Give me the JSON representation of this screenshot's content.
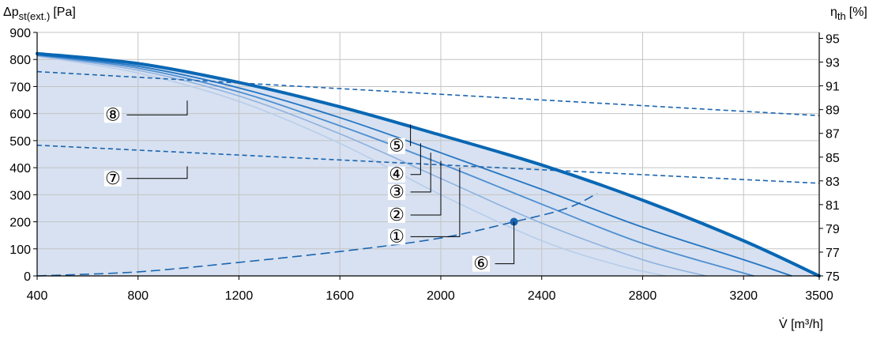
{
  "chart_data": {
    "type": "line",
    "x": {
      "label": "V̇ [m³/h]",
      "ticks": [
        400,
        800,
        1200,
        1600,
        2000,
        2400,
        2800,
        3200,
        3500
      ],
      "range": [
        400,
        3500
      ]
    },
    "y_left": {
      "label_main": "Δp",
      "label_sub": "st(ext.)",
      "label_unit": "[Pa]",
      "ticks": [
        0,
        100,
        200,
        300,
        400,
        500,
        600,
        700,
        800,
        900
      ],
      "range": [
        0,
        900
      ]
    },
    "y_right": {
      "label_main": "η",
      "label_sub": "th",
      "label_unit": "[%]",
      "ticks": [
        75,
        77,
        79,
        81,
        83,
        85,
        87,
        89,
        91,
        93,
        95
      ],
      "range": [
        75,
        95.5
      ]
    },
    "grid": true,
    "fan_curves": [
      {
        "name": "1",
        "color": "#b9cdea",
        "width": 1.6,
        "points": [
          [
            400,
            812
          ],
          [
            800,
            750
          ],
          [
            1200,
            645
          ],
          [
            1600,
            490
          ],
          [
            2000,
            300
          ],
          [
            2400,
            130
          ],
          [
            2700,
            40
          ],
          [
            2890,
            0
          ]
        ]
      },
      {
        "name": "2",
        "color": "#8fb2df",
        "width": 1.6,
        "points": [
          [
            400,
            814
          ],
          [
            800,
            760
          ],
          [
            1200,
            665
          ],
          [
            1600,
            525
          ],
          [
            2000,
            360
          ],
          [
            2400,
            195
          ],
          [
            2800,
            60
          ],
          [
            3050,
            0
          ]
        ]
      },
      {
        "name": "3",
        "color": "#4f8fd1",
        "width": 1.8,
        "points": [
          [
            400,
            816
          ],
          [
            800,
            768
          ],
          [
            1200,
            680
          ],
          [
            1600,
            555
          ],
          [
            2000,
            415
          ],
          [
            2400,
            265
          ],
          [
            2800,
            120
          ],
          [
            3240,
            0
          ]
        ]
      },
      {
        "name": "4",
        "color": "#2476c3",
        "width": 1.8,
        "points": [
          [
            400,
            818
          ],
          [
            800,
            775
          ],
          [
            1200,
            695
          ],
          [
            1600,
            585
          ],
          [
            2000,
            455
          ],
          [
            2400,
            320
          ],
          [
            2800,
            180
          ],
          [
            3200,
            60
          ],
          [
            3390,
            0
          ]
        ]
      },
      {
        "name": "5",
        "color": "#0867b4",
        "width": 4,
        "points": [
          [
            400,
            822
          ],
          [
            800,
            785
          ],
          [
            1200,
            715
          ],
          [
            1600,
            625
          ],
          [
            2000,
            520
          ],
          [
            2400,
            410
          ],
          [
            2800,
            280
          ],
          [
            3200,
            130
          ],
          [
            3500,
            0
          ]
        ]
      }
    ],
    "system_curve": {
      "name": "6",
      "color": "#1a64b0",
      "points": [
        [
          400,
          0
        ],
        [
          800,
          15
        ],
        [
          1200,
          50
        ],
        [
          1600,
          90
        ],
        [
          2000,
          140
        ],
        [
          2290,
          200
        ],
        [
          2500,
          250
        ],
        [
          2620,
          305
        ]
      ],
      "operating_point": [
        2290,
        200
      ]
    },
    "efficiency_curves": [
      {
        "name": "7",
        "axis": "right",
        "color": "#1a64b0",
        "points": [
          [
            400,
            86
          ],
          [
            3500,
            82.8
          ]
        ]
      },
      {
        "name": "8",
        "axis": "right",
        "color": "#1a64b0",
        "points": [
          [
            400,
            92.2
          ],
          [
            3500,
            88.5
          ]
        ]
      }
    ],
    "fill_color": "#d7e1f1",
    "callout_labels": [
      "①",
      "②",
      "③",
      "④",
      "⑤",
      "⑥",
      "⑦",
      "⑧"
    ]
  }
}
